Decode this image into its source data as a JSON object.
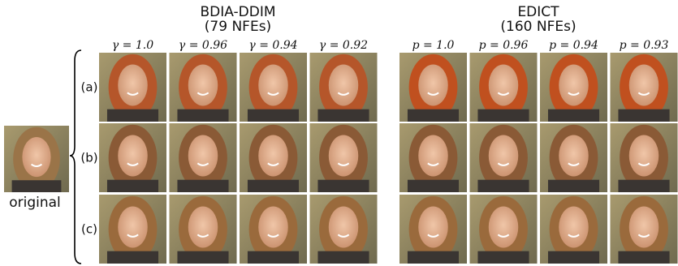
{
  "original_label": "original",
  "rows": [
    "(a)",
    "(b)",
    "(c)"
  ],
  "groups": [
    {
      "title": "BDIA-DDIM",
      "subtitle": "(79 NFEs)",
      "columns": [
        "γ = 1.0",
        "γ = 0.96",
        "γ = 0.94",
        "γ = 0.92"
      ]
    },
    {
      "title": "EDICT",
      "subtitle": "(160 NFEs)",
      "columns": [
        "p = 1.0",
        "p = 0.96",
        "p = 0.94",
        "p = 0.93"
      ]
    }
  ]
}
